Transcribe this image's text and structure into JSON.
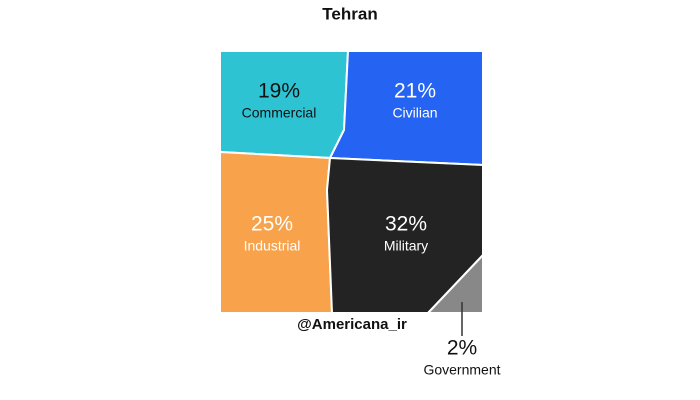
{
  "chart_data": {
    "type": "treemap",
    "title": "Tehran",
    "categories": [
      "Commercial",
      "Civilian",
      "Industrial",
      "Military",
      "Government"
    ],
    "values": [
      19,
      21,
      25,
      32,
      2
    ],
    "value_labels": [
      "19%",
      "21%",
      "25%",
      "32%",
      "2%"
    ],
    "colors": [
      "#2ec3d3",
      "#2563f3",
      "#f8a34b",
      "#232323",
      "#888888"
    ],
    "watermark": "@Americana_ir"
  }
}
